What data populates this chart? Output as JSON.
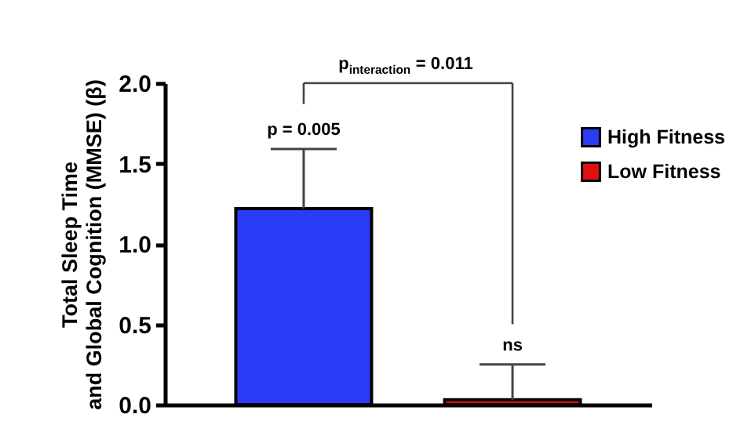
{
  "chart_data": {
    "type": "bar",
    "ylabel": "Total Sleep Time\nand Global Cognition (MMSE) (β)",
    "categories": [
      null,
      null
    ],
    "series": [
      {
        "name": "High Fitness",
        "color": "#2a3cf5",
        "values": [
          1.22,
          null
        ],
        "errors": [
          [
            1.22,
            1.59
          ],
          null
        ]
      },
      {
        "name": "Low Fitness",
        "color": "#e01010",
        "values": [
          null,
          0.03
        ],
        "errors": [
          null,
          [
            0.03,
            0.25
          ]
        ]
      }
    ],
    "ylim": [
      0,
      2
    ],
    "yticks": [
      {
        "value": 0,
        "label": "0.0"
      },
      0.5,
      {
        "value": 1,
        "label": "1.0"
      },
      1.5,
      {
        "value": 2,
        "label": "2.0"
      }
    ],
    "annotations": [
      "p$_{interaction}$ = 0.011",
      "p = 0.005",
      "ns"
    ],
    "legend": "top right",
    "tick_labels": "y"
  }
}
